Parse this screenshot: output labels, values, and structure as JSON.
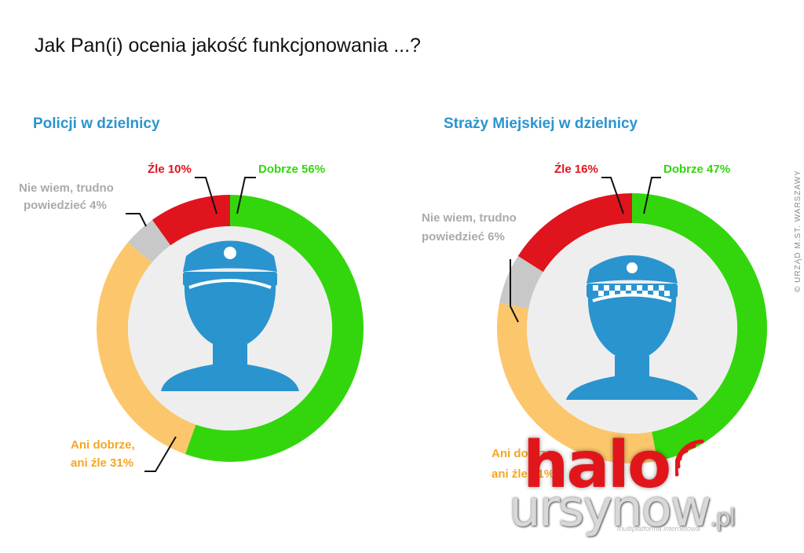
{
  "page": {
    "title": "Jak Pan(i) ocenia jakość funkcjonowania ...?",
    "credit": "© URZĄD M.ST. WARSZAWY",
    "watermark": {
      "word1": "halo",
      "word2": "ursynow",
      "tld": ".pl",
      "tagline": "multiplatforma internetowa"
    }
  },
  "colors": {
    "title": "#2a94cf",
    "dobrze": "#33d60d",
    "zle": "#e0141d",
    "nie_wiem": "#c8c8c8",
    "ani": "#fcc66c",
    "icon": "#2a94cf",
    "inner": "#eeeeee"
  },
  "chart_data": [
    {
      "type": "pie",
      "title": "Policji w dzielnicy",
      "categories": [
        "Dobrze",
        "Ani dobrze, ani źle",
        "Nie wiem, trudno powiedzieć",
        "Źle"
      ],
      "values": [
        56,
        31,
        4,
        10
      ],
      "labels": {
        "dobrze": "Dobrze 56%",
        "zle": "Źle 10%",
        "nie_wiem_1": "Nie wiem, trudno",
        "nie_wiem_2": "powiedzieć 4%",
        "ani_1": "Ani dobrze,",
        "ani_2": "ani źle 31%"
      },
      "icon": "police-officer-icon"
    },
    {
      "type": "pie",
      "title": "Straży Miejskiej w dzielnicy",
      "categories": [
        "Dobrze",
        "Ani dobrze, ani źle",
        "Nie wiem, trudno powiedzieć",
        "Źle"
      ],
      "values": [
        47,
        31,
        6,
        16
      ],
      "labels": {
        "dobrze": "Dobrze 47%",
        "zle": "Źle 16%",
        "nie_wiem_1": "Nie wiem, trudno",
        "nie_wiem_2": "powiedzieć 6%",
        "ani_1": "Ani dobrze,",
        "ani_2": "ani źle 31%"
      },
      "icon": "city-guard-icon"
    }
  ]
}
